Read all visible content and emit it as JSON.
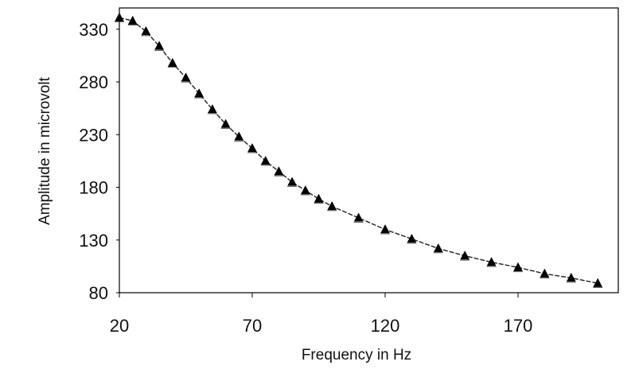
{
  "chart_data": {
    "type": "line",
    "title": "",
    "xlabel": "Frequency in Hz",
    "ylabel": "Amplitude in microvolt",
    "xlim": [
      20,
      200
    ],
    "ylim": [
      80,
      350
    ],
    "x_ticks": [
      20,
      70,
      120,
      170
    ],
    "x_tick_labels": [
      "20",
      "70",
      "120",
      "170"
    ],
    "y_ticks": [
      80,
      130,
      180,
      230,
      280,
      330
    ],
    "y_tick_labels": [
      "80",
      "130",
      "180",
      "230",
      "280",
      "330"
    ],
    "grid": false,
    "legend": "none",
    "marker": "triangle",
    "series": [
      {
        "x": [
          20,
          25,
          30,
          35,
          40,
          45,
          50,
          55,
          60,
          65,
          70,
          75,
          80,
          85,
          90,
          95,
          100,
          110,
          120,
          130,
          140,
          150,
          160,
          170,
          180,
          190,
          200
        ],
        "y": [
          341,
          338,
          328,
          314,
          298,
          284,
          269,
          254,
          240,
          228,
          217,
          205,
          195,
          185,
          177,
          169,
          162,
          151,
          140,
          131,
          122,
          115,
          109,
          104,
          98,
          94,
          89
        ]
      }
    ],
    "colors": {
      "line": "#222222",
      "marker": "#000000",
      "axis": "#000000",
      "background": "#ffffff"
    }
  }
}
